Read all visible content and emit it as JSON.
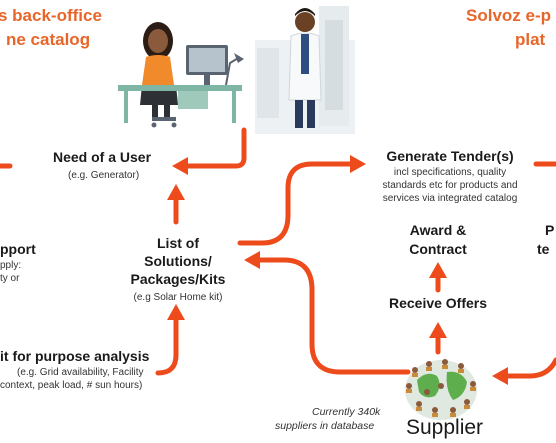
{
  "header": {
    "left_title_line1": "s back-office",
    "left_title_line2": "ne catalog",
    "right_title_line1": "Solvoz e-p",
    "right_title_line2": "plat"
  },
  "left_flow": {
    "need_title": "Need of a User",
    "need_sub": "(e.g.  Generator)",
    "support_title": "pport",
    "support_sub1": "pply:",
    "support_sub2": "ty or",
    "list_line1": "List of",
    "list_line2": "Solutions/",
    "list_line3": "Packages/Kits",
    "list_sub": "(e.g Solar Home kit)",
    "fit_title": "it for purpose analysis",
    "fit_sub1": "(e.g. Grid availability, Facility",
    "fit_sub2": "context, peak load, # sun hours)"
  },
  "right_flow": {
    "tender_title": "Generate Tender(s)",
    "tender_sub1": "incl specifications, quality",
    "tender_sub2": "standards etc for products and",
    "tender_sub3": "services via integrated catalog",
    "award_line1": "Award &",
    "award_line2": "Contract",
    "offers_title": "Receive Offers",
    "cut_p": "P",
    "cut_te": "te",
    "supplier_note1": "Currently 340k",
    "supplier_note2": "suppliers in database",
    "supplier_label": "Supplier"
  },
  "colors": {
    "accent": "#e8662a",
    "arrow": "#ee4b1d"
  }
}
